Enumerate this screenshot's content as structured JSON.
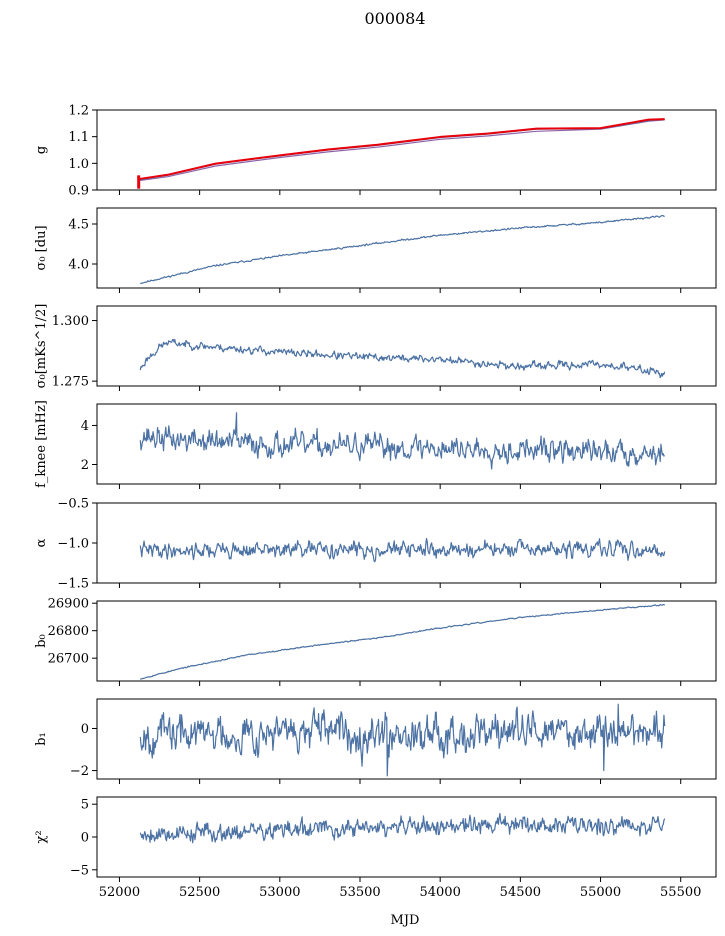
{
  "title": "000084",
  "colors": {
    "series": "#4c72a4",
    "series_alt": "#8d64a8",
    "highlight": "#e8000b"
  },
  "chart_data": [
    {
      "type": "line",
      "id": "g",
      "ylabel": "g",
      "xlim": [
        51860,
        55720
      ],
      "ylim": [
        0.9,
        1.2
      ],
      "yticks": [
        0.9,
        1.0,
        1.1,
        1.2
      ],
      "ytick_labels": [
        "0.9",
        "1.0",
        "1.1",
        "1.2"
      ],
      "series": [
        {
          "role": "model",
          "x": [
            52120,
            52300,
            52600,
            53000,
            53300,
            53600,
            54000,
            54300,
            54600,
            55000,
            55300,
            55400
          ],
          "y": [
            0.935,
            0.95,
            0.99,
            1.022,
            1.043,
            1.06,
            1.09,
            1.103,
            1.12,
            1.128,
            1.158,
            1.163
          ]
        },
        {
          "role": "model",
          "x": [
            52120,
            52300,
            52600,
            53000,
            53300,
            53600,
            54000,
            54300,
            54600,
            55000,
            55300,
            55400
          ],
          "y": [
            0.938,
            0.955,
            0.997,
            1.028,
            1.05,
            1.067,
            1.097,
            1.11,
            1.128,
            1.13,
            1.16,
            1.165
          ]
        },
        {
          "role": "data",
          "x": [
            52120,
            52300,
            52600,
            53000,
            53300,
            53600,
            54000,
            54300,
            54600,
            55000,
            55300,
            55400
          ],
          "y": [
            0.941,
            0.957,
            0.999,
            1.03,
            1.052,
            1.069,
            1.099,
            1.112,
            1.13,
            1.132,
            1.164,
            1.166
          ],
          "spike": {
            "x": 52120,
            "y": [
              0.905,
              0.955
            ]
          }
        }
      ]
    },
    {
      "type": "line",
      "id": "sigma0_du",
      "ylabel": "σ₀ [du]",
      "xlim": [
        51860,
        55720
      ],
      "ylim": [
        3.7,
        4.7
      ],
      "yticks": [
        4.0,
        4.5
      ],
      "ytick_labels": [
        "4.0",
        "4.5"
      ],
      "series": [
        {
          "trend": {
            "x": [
              52130,
              52300,
              52600,
              53000,
              53500,
              54000,
              54500,
              55000,
              55400
            ],
            "y": [
              3.76,
              3.84,
              3.98,
              4.1,
              4.23,
              4.36,
              4.45,
              4.52,
              4.6
            ]
          },
          "noise": 0.006,
          "seed": 11
        }
      ]
    },
    {
      "type": "line",
      "id": "sigma0_mks",
      "ylabel": "σ₀[mKs^1/2]",
      "xlim": [
        51860,
        55720
      ],
      "ylim": [
        1.273,
        1.306
      ],
      "yticks": [
        1.275,
        1.3
      ],
      "ytick_labels": [
        "1.275",
        "1.300"
      ],
      "series": [
        {
          "trend": {
            "x": [
              52130,
              52170,
              52250,
              52300,
              52600,
              53000,
              53500,
              54000,
              54500,
              55000,
              55350,
              55400
            ],
            "y": [
              1.28,
              1.284,
              1.289,
              1.291,
              1.289,
              1.287,
              1.285,
              1.284,
              1.281,
              1.282,
              1.279,
              1.278
            ]
          },
          "noise": 0.0009,
          "seed": 23
        }
      ]
    },
    {
      "type": "line",
      "id": "fknee",
      "ylabel": "f_knee [mHz]",
      "xlim": [
        51860,
        55720
      ],
      "ylim": [
        1.0,
        5.1
      ],
      "yticks": [
        2,
        4
      ],
      "ytick_labels": [
        "2",
        "4"
      ],
      "series": [
        {
          "trend": {
            "x": [
              52130,
              52300,
              53000,
              54000,
              55000,
              55400
            ],
            "y": [
              3.5,
              3.3,
              3.0,
              2.85,
              2.65,
              2.6
            ]
          },
          "noise": 0.35,
          "seed": 37,
          "spikes": [
            {
              "x": 52730,
              "y": 4.65
            }
          ]
        }
      ]
    },
    {
      "type": "line",
      "id": "alpha",
      "ylabel": "α",
      "xlim": [
        51860,
        55720
      ],
      "ylim": [
        -1.5,
        -0.5
      ],
      "yticks": [
        -1.5,
        -1.0,
        -0.5
      ],
      "ytick_labels": [
        "−1.5",
        "−1.0",
        "−0.5"
      ],
      "series": [
        {
          "trend": {
            "x": [
              52130,
              55400
            ],
            "y": [
              -1.09,
              -1.08
            ]
          },
          "noise": 0.055,
          "seed": 41
        }
      ]
    },
    {
      "type": "line",
      "id": "b0",
      "ylabel": "b₀",
      "xlim": [
        51860,
        55720
      ],
      "ylim": [
        26617,
        26908
      ],
      "yticks": [
        26700,
        26800,
        26900
      ],
      "ytick_labels": [
        "26700",
        "26800",
        "26900"
      ],
      "series": [
        {
          "trend": {
            "x": [
              52130,
              52400,
              52800,
              53200,
              53600,
              54000,
              54500,
              55000,
              55400
            ],
            "y": [
              26625,
              26665,
              26712,
              26745,
              26773,
              26810,
              26848,
              26875,
              26895
            ]
          },
          "noise": 1.2,
          "seed": 53
        }
      ]
    },
    {
      "type": "line",
      "id": "b1",
      "ylabel": "b₁",
      "xlim": [
        51860,
        55720
      ],
      "ylim": [
        -2.4,
        1.4
      ],
      "yticks": [
        -2,
        0
      ],
      "ytick_labels": [
        "−2",
        "0"
      ],
      "series": [
        {
          "trend": {
            "x": [
              52130,
              55400
            ],
            "y": [
              -0.25,
              -0.1
            ]
          },
          "noise": 0.5,
          "seed": 67,
          "spikes": [
            {
              "x": 53670,
              "y": -2.25
            },
            {
              "x": 55020,
              "y": -2.0
            },
            {
              "x": 55110,
              "y": 1.15
            }
          ]
        }
      ]
    },
    {
      "type": "line",
      "id": "chi2",
      "ylabel": "χ²",
      "xlim": [
        51860,
        55720
      ],
      "ylim": [
        -6.1,
        6.1
      ],
      "yticks": [
        -5,
        0,
        5
      ],
      "ytick_labels": [
        "−5",
        "0",
        "5"
      ],
      "series": [
        {
          "trend": {
            "x": [
              52130,
              52500,
              53000,
              53500,
              54000,
              54500,
              55000,
              55400
            ],
            "y": [
              0.5,
              0.7,
              1.0,
              1.3,
              1.6,
              1.9,
              1.8,
              2.0
            ]
          },
          "noise": 0.8,
          "seed": 79
        }
      ]
    }
  ],
  "xaxis": {
    "label": "MJD",
    "ticks": [
      52000,
      52500,
      53000,
      53500,
      54000,
      54500,
      55000,
      55500
    ],
    "tick_labels": [
      "52000",
      "52500",
      "53000",
      "53500",
      "54000",
      "54500",
      "55000",
      "55500"
    ]
  }
}
